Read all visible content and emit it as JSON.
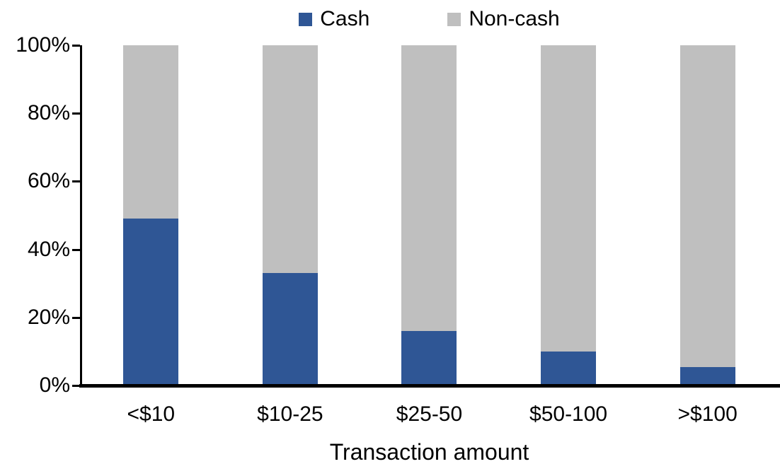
{
  "chart_data": {
    "type": "bar",
    "stacked": true,
    "percent_stacked": true,
    "title": "",
    "xlabel": "Transaction amount",
    "ylabel": "",
    "categories": [
      "<$10",
      "$10-25",
      "$25-50",
      "$50-100",
      ">$100"
    ],
    "series": [
      {
        "name": "Cash",
        "color": "#2F5695",
        "values": [
          49,
          33,
          16,
          10,
          5.5
        ]
      },
      {
        "name": "Non-cash",
        "color": "#BFBFBF",
        "values": [
          51,
          67,
          84,
          90,
          94.5
        ]
      }
    ],
    "ylim": [
      0,
      100
    ],
    "yticks": [
      "0%",
      "20%",
      "40%",
      "60%",
      "80%",
      "100%"
    ],
    "grid": false,
    "legend_position": "top-center",
    "axis_color": "#000000",
    "background_color": "#FFFFFF"
  }
}
